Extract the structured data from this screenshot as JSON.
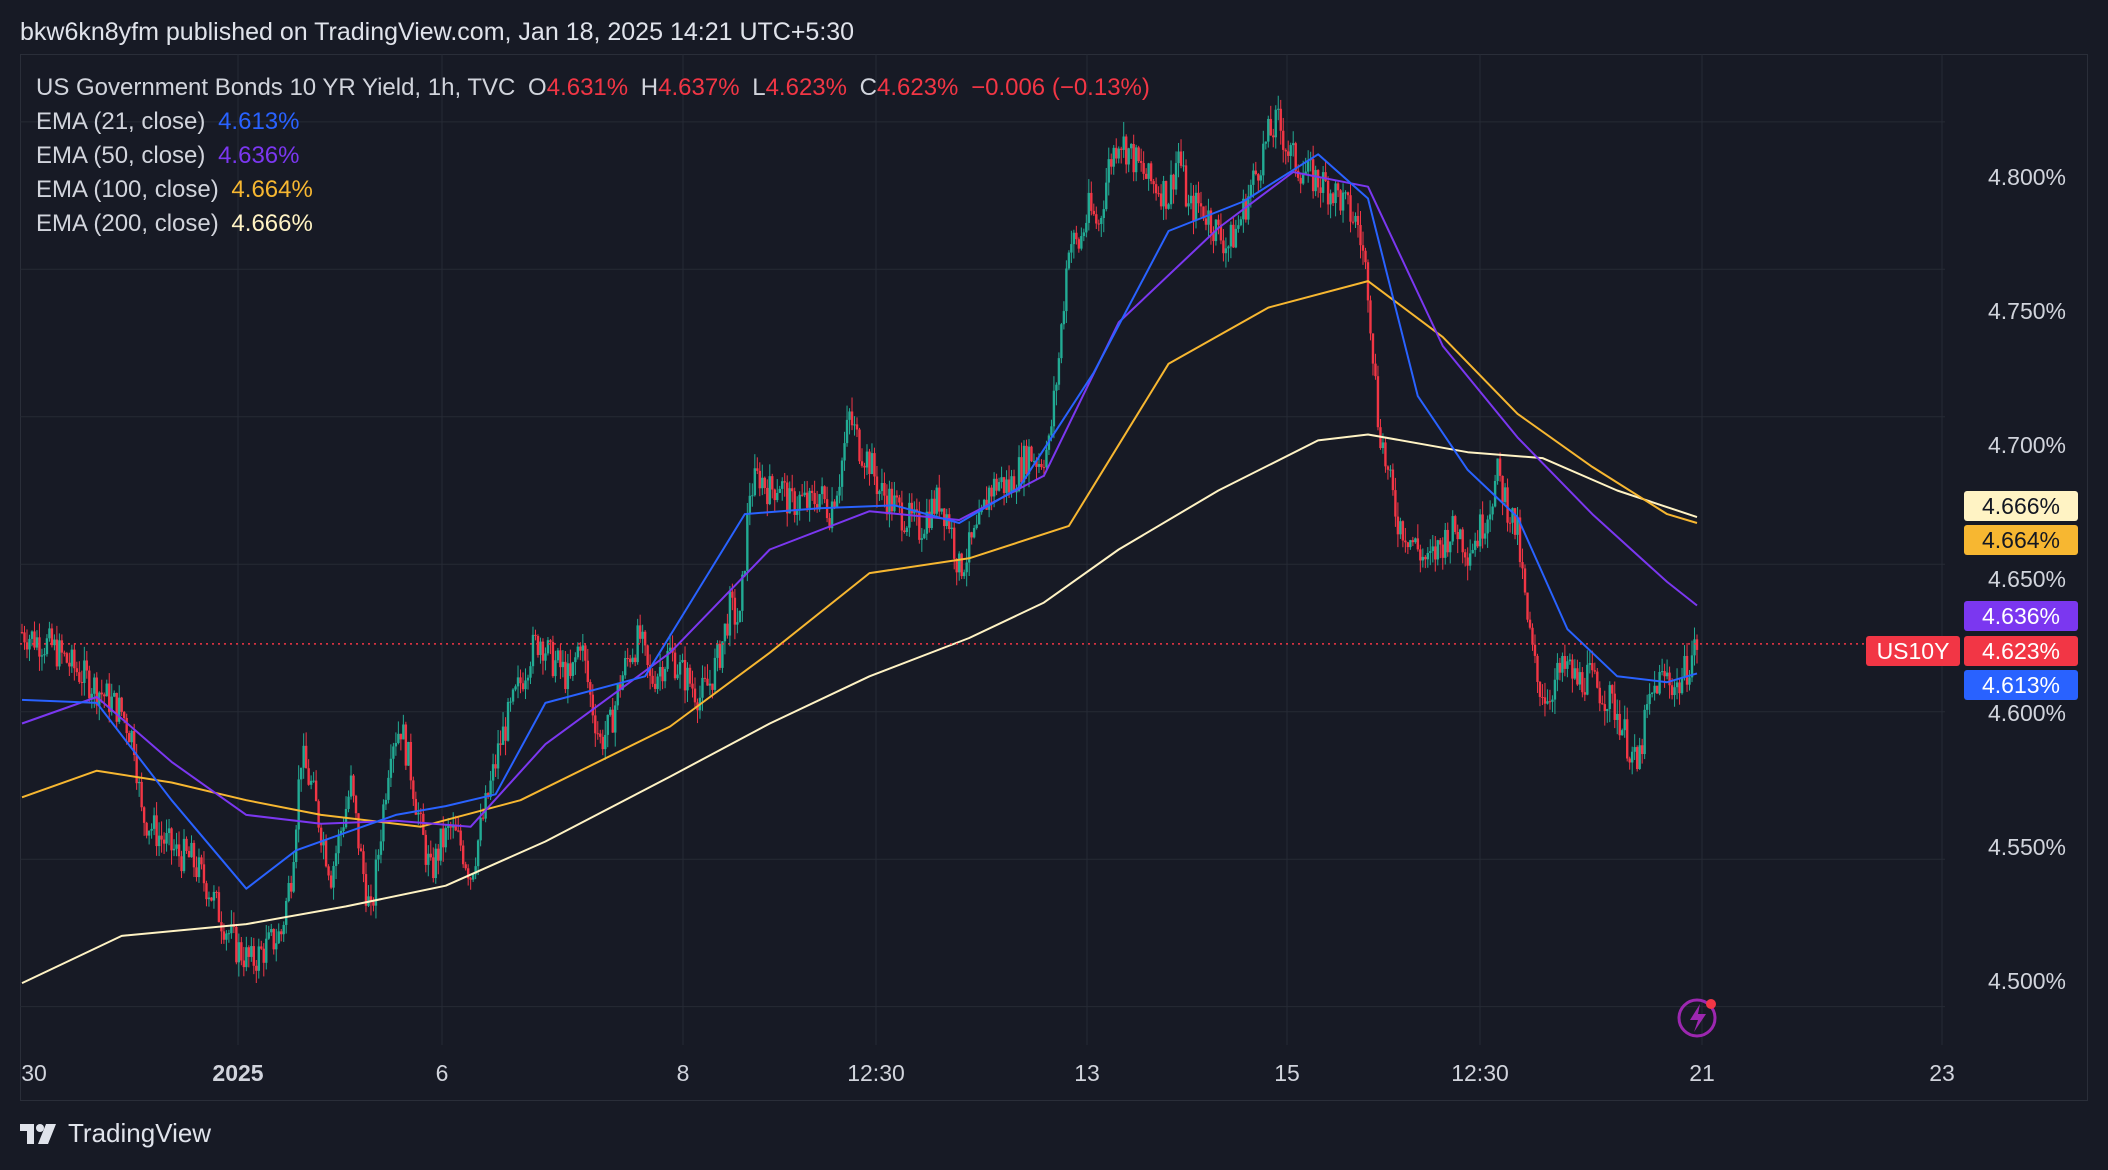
{
  "header": {
    "publish_line": "bkw6kn8yfm published on TradingView.com, Jan 18, 2025 14:21 UTC+5:30"
  },
  "legend": {
    "instrument": "US Government Bonds 10 YR Yield, 1h, TVC",
    "open_label": "O",
    "open": "4.631%",
    "high_label": "H",
    "high": "4.637%",
    "low_label": "L",
    "low": "4.623%",
    "close_label": "C",
    "close": "4.623%",
    "change": "−0.006 (−0.13%)",
    "ema21_label": "EMA (21, close)",
    "ema21": "4.613%",
    "ema50_label": "EMA (50, close)",
    "ema50": "4.636%",
    "ema100_label": "EMA (100, close)",
    "ema100": "4.664%",
    "ema200_label": "EMA (200, close)",
    "ema200": "4.666%"
  },
  "badges": {
    "ema200": "4.666%",
    "ema100": "4.664%",
    "ema50": "4.636%",
    "symbol": "US10Y",
    "price": "4.623%",
    "ema21": "4.613%"
  },
  "colors": {
    "up": "#22ab94",
    "down": "#f23645",
    "ema21": "#2962ff",
    "ema50": "#7b37f0",
    "ema100": "#f7b731",
    "ema200": "#fff3c4",
    "background": "#171a25",
    "grid": "#262a35"
  },
  "footer": {
    "brand": "TradingView"
  },
  "chart_data": {
    "type": "candlestick",
    "y_axis_ticks": [
      "4.800%",
      "4.750%",
      "4.700%",
      "4.650%",
      "4.600%",
      "4.550%",
      "4.500%"
    ],
    "ylim": [
      4.487,
      4.823
    ],
    "x_axis_ticks": [
      "30",
      "2025",
      "6",
      "8",
      "12:30",
      "13",
      "15",
      "12:30",
      "21",
      "23"
    ],
    "last_price": 4.623,
    "price_series": [
      [
        0,
        4.627
      ],
      [
        12,
        4.622
      ],
      [
        22,
        4.614
      ],
      [
        30,
        4.608
      ],
      [
        40,
        4.6
      ],
      [
        45,
        4.59
      ],
      [
        48,
        4.565
      ],
      [
        55,
        4.558
      ],
      [
        62,
        4.552
      ],
      [
        68,
        4.55
      ],
      [
        75,
        4.54
      ],
      [
        80,
        4.53
      ],
      [
        86,
        4.52
      ],
      [
        92,
        4.515
      ],
      [
        98,
        4.52
      ],
      [
        104,
        4.525
      ],
      [
        108,
        4.545
      ],
      [
        112,
        4.585
      ],
      [
        116,
        4.575
      ],
      [
        120,
        4.56
      ],
      [
        124,
        4.545
      ],
      [
        128,
        4.56
      ],
      [
        132,
        4.575
      ],
      [
        136,
        4.55
      ],
      [
        140,
        4.53
      ],
      [
        144,
        4.56
      ],
      [
        148,
        4.59
      ],
      [
        152,
        4.595
      ],
      [
        156,
        4.58
      ],
      [
        160,
        4.56
      ],
      [
        164,
        4.545
      ],
      [
        168,
        4.555
      ],
      [
        172,
        4.56
      ],
      [
        176,
        4.555
      ],
      [
        180,
        4.545
      ],
      [
        184,
        4.56
      ],
      [
        188,
        4.575
      ],
      [
        192,
        4.59
      ],
      [
        196,
        4.6
      ],
      [
        200,
        4.61
      ],
      [
        204,
        4.62
      ],
      [
        208,
        4.625
      ],
      [
        212,
        4.618
      ],
      [
        216,
        4.615
      ],
      [
        220,
        4.61
      ],
      [
        224,
        4.625
      ],
      [
        228,
        4.605
      ],
      [
        232,
        4.59
      ],
      [
        236,
        4.595
      ],
      [
        240,
        4.61
      ],
      [
        244,
        4.62
      ],
      [
        248,
        4.625
      ],
      [
        252,
        4.61
      ],
      [
        256,
        4.615
      ],
      [
        260,
        4.62
      ],
      [
        264,
        4.614
      ],
      [
        268,
        4.61
      ],
      [
        272,
        4.605
      ],
      [
        276,
        4.61
      ],
      [
        280,
        4.62
      ],
      [
        284,
        4.635
      ],
      [
        288,
        4.63
      ],
      [
        292,
        4.675
      ],
      [
        296,
        4.68
      ],
      [
        300,
        4.675
      ],
      [
        304,
        4.678
      ],
      [
        308,
        4.67
      ],
      [
        312,
        4.672
      ],
      [
        316,
        4.67
      ],
      [
        320,
        4.674
      ],
      [
        324,
        4.668
      ],
      [
        328,
        4.68
      ],
      [
        332,
        4.7
      ],
      [
        336,
        4.69
      ],
      [
        340,
        4.685
      ],
      [
        344,
        4.675
      ],
      [
        348,
        4.672
      ],
      [
        352,
        4.668
      ],
      [
        356,
        4.665
      ],
      [
        360,
        4.662
      ],
      [
        364,
        4.668
      ],
      [
        368,
        4.672
      ],
      [
        372,
        4.665
      ],
      [
        376,
        4.648
      ],
      [
        380,
        4.655
      ],
      [
        384,
        4.662
      ],
      [
        388,
        4.675
      ],
      [
        392,
        4.678
      ],
      [
        396,
        4.676
      ],
      [
        400,
        4.682
      ],
      [
        404,
        4.688
      ],
      [
        408,
        4.685
      ],
      [
        412,
        4.69
      ],
      [
        416,
        4.72
      ],
      [
        420,
        4.76
      ],
      [
        424,
        4.758
      ],
      [
        428,
        4.77
      ],
      [
        432,
        4.765
      ],
      [
        436,
        4.785
      ],
      [
        440,
        4.795
      ],
      [
        444,
        4.79
      ],
      [
        448,
        4.785
      ],
      [
        452,
        4.78
      ],
      [
        456,
        4.778
      ],
      [
        460,
        4.775
      ],
      [
        464,
        4.79
      ],
      [
        468,
        4.77
      ],
      [
        472,
        4.772
      ],
      [
        476,
        4.768
      ],
      [
        480,
        4.762
      ],
      [
        484,
        4.758
      ],
      [
        488,
        4.765
      ],
      [
        492,
        4.775
      ],
      [
        496,
        4.785
      ],
      [
        500,
        4.795
      ],
      [
        504,
        4.8
      ],
      [
        508,
        4.79
      ],
      [
        512,
        4.785
      ],
      [
        516,
        4.782
      ],
      [
        520,
        4.78
      ],
      [
        524,
        4.778
      ],
      [
        528,
        4.775
      ],
      [
        532,
        4.77
      ],
      [
        536,
        4.765
      ],
      [
        540,
        4.745
      ],
      [
        544,
        4.7
      ],
      [
        548,
        4.68
      ],
      [
        552,
        4.665
      ],
      [
        556,
        4.66
      ],
      [
        560,
        4.655
      ],
      [
        564,
        4.65
      ],
      [
        568,
        4.655
      ],
      [
        572,
        4.66
      ],
      [
        576,
        4.662
      ],
      [
        580,
        4.655
      ],
      [
        584,
        4.66
      ],
      [
        588,
        4.668
      ],
      [
        592,
        4.68
      ],
      [
        596,
        4.67
      ],
      [
        600,
        4.66
      ],
      [
        604,
        4.63
      ],
      [
        608,
        4.61
      ],
      [
        612,
        4.605
      ],
      [
        616,
        4.612
      ],
      [
        620,
        4.615
      ],
      [
        624,
        4.61
      ],
      [
        628,
        4.612
      ],
      [
        632,
        4.608
      ],
      [
        636,
        4.605
      ],
      [
        640,
        4.6
      ],
      [
        644,
        4.59
      ],
      [
        648,
        4.58
      ],
      [
        652,
        4.6
      ],
      [
        656,
        4.61
      ],
      [
        660,
        4.612
      ],
      [
        664,
        4.608
      ],
      [
        668,
        4.615
      ],
      [
        672,
        4.623
      ]
    ],
    "ema21_series": [
      [
        0,
        4.604
      ],
      [
        30,
        4.603
      ],
      [
        60,
        4.57
      ],
      [
        90,
        4.54
      ],
      [
        110,
        4.553
      ],
      [
        130,
        4.559
      ],
      [
        150,
        4.565
      ],
      [
        170,
        4.568
      ],
      [
        190,
        4.572
      ],
      [
        210,
        4.603
      ],
      [
        250,
        4.612
      ],
      [
        290,
        4.667
      ],
      [
        320,
        4.669
      ],
      [
        350,
        4.67
      ],
      [
        376,
        4.664
      ],
      [
        400,
        4.676
      ],
      [
        430,
        4.715
      ],
      [
        460,
        4.763
      ],
      [
        490,
        4.773
      ],
      [
        520,
        4.789
      ],
      [
        540,
        4.774
      ],
      [
        560,
        4.707
      ],
      [
        580,
        4.682
      ],
      [
        600,
        4.666
      ],
      [
        620,
        4.628
      ],
      [
        640,
        4.612
      ],
      [
        660,
        4.61
      ],
      [
        672,
        4.613
      ]
    ],
    "ema50_series": [
      [
        0,
        4.596
      ],
      [
        30,
        4.605
      ],
      [
        60,
        4.583
      ],
      [
        90,
        4.565
      ],
      [
        120,
        4.562
      ],
      [
        150,
        4.563
      ],
      [
        180,
        4.561
      ],
      [
        210,
        4.589
      ],
      [
        260,
        4.62
      ],
      [
        300,
        4.655
      ],
      [
        340,
        4.668
      ],
      [
        376,
        4.665
      ],
      [
        410,
        4.68
      ],
      [
        440,
        4.732
      ],
      [
        480,
        4.764
      ],
      [
        510,
        4.783
      ],
      [
        540,
        4.778
      ],
      [
        570,
        4.724
      ],
      [
        600,
        4.693
      ],
      [
        630,
        4.667
      ],
      [
        660,
        4.644
      ],
      [
        672,
        4.636
      ]
    ],
    "ema100_series": [
      [
        0,
        4.571
      ],
      [
        30,
        4.58
      ],
      [
        60,
        4.576
      ],
      [
        90,
        4.57
      ],
      [
        120,
        4.565
      ],
      [
        160,
        4.561
      ],
      [
        200,
        4.57
      ],
      [
        260,
        4.595
      ],
      [
        300,
        4.62
      ],
      [
        340,
        4.647
      ],
      [
        380,
        4.652
      ],
      [
        420,
        4.663
      ],
      [
        460,
        4.718
      ],
      [
        500,
        4.737
      ],
      [
        540,
        4.746
      ],
      [
        570,
        4.727
      ],
      [
        600,
        4.701
      ],
      [
        630,
        4.683
      ],
      [
        660,
        4.667
      ],
      [
        672,
        4.664
      ]
    ],
    "ema200_series": [
      [
        0,
        4.508
      ],
      [
        40,
        4.524
      ],
      [
        90,
        4.528
      ],
      [
        130,
        4.534
      ],
      [
        170,
        4.541
      ],
      [
        210,
        4.556
      ],
      [
        260,
        4.578
      ],
      [
        300,
        4.596
      ],
      [
        340,
        4.612
      ],
      [
        380,
        4.625
      ],
      [
        410,
        4.637
      ],
      [
        440,
        4.655
      ],
      [
        480,
        4.675
      ],
      [
        520,
        4.692
      ],
      [
        540,
        4.694
      ],
      [
        580,
        4.688
      ],
      [
        610,
        4.686
      ],
      [
        640,
        4.675
      ],
      [
        672,
        4.666
      ]
    ]
  }
}
